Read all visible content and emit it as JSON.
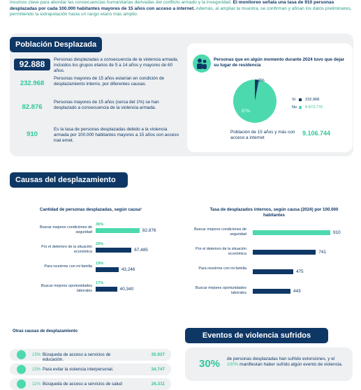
{
  "intro": {
    "text_1": "insumos clave para abordar las consecuencias humanitarias derivadas del conflicto armado y la inseguridad. ",
    "bold": "El monitoreo señala una tasa de 910 personas desplazadas por cada 100.000 habitantes mayores de 15 años con acceso a internet.",
    "text_2": " Además, al ampliar la muestra, se confirman y afinan los datos preliminares, permitiendo la extrapolación hacia un rango etario más amplio."
  },
  "poblacion": {
    "title": "Población Desplazada",
    "stats": [
      {
        "value": "92.888",
        "text": "Personas desplazadas a consecuencia de la violencia armada, incluidos los grupos etarios de 5 a 14 años y mayores de 60 años."
      },
      {
        "value": "232.968",
        "text": "Personas mayores de 15 años estarían en condición de desplazamiento interno, por diferentes causas."
      },
      {
        "value": "82.876",
        "text": "Personas mayores de 15 años (cerca del 1%) se han desplazado a consecuencia de la violencia armada."
      },
      {
        "value": "910",
        "text": "Es la tasa de personas desplazadas debido a la violencia armada por 100.000 habitantes mayores a 15 años con acceso inat ernet."
      }
    ],
    "panel": {
      "title": "Personas que en algún momento durante 2024 tuvo que dejar su lugar de residencia",
      "pie": {
        "values": [
          3,
          97
        ],
        "value_labels": [
          "3%",
          "97%"
        ],
        "colors": [
          "#0e3765",
          "#4cd9ae"
        ]
      },
      "legend": [
        {
          "label": "Sí",
          "value": "232.968"
        },
        {
          "label": "No",
          "value": "8.873.776"
        }
      ],
      "total_label": "Población de 15 años y más con acceso a internet",
      "total_value": "9.106.744"
    }
  },
  "causas": {
    "title": "Causas del desplazamiento",
    "colors": [
      "#4cd9ae",
      "#0e3765"
    ],
    "charts": [
      {
        "type": "bar",
        "title": "Cantidad de personas desplazadas, según causa¹",
        "categories": [
          "Buscar mejores condiciones de seguridad",
          "Por el deterioro de la situación económica",
          "Para reunirme con mi familia",
          "Buscar mejores oportunidades laborales"
        ],
        "shares": [
          "36%",
          "29%",
          "19%",
          "17%"
        ],
        "values": [
          82876,
          67485,
          43246,
          40340
        ],
        "value_labels": [
          "82,876",
          "67,485",
          "43,246",
          "40,340"
        ]
      },
      {
        "type": "bar",
        "title": "Tasa de desplazados internos, según causa (2024) por 100.000 habitantes",
        "categories": [
          "Buscar mejores condiciones de seguridad",
          "Por el deterioro de la situación económica",
          "Para reunirme con mi familia",
          "Buscar mejores oportunidades laborales"
        ],
        "values": [
          910,
          741,
          475,
          443
        ]
      }
    ]
  },
  "otras": {
    "title": "Otras causas de desplazamiento",
    "items": [
      {
        "share": "15%",
        "text": "Búsqueda de acceso a servicios de educación.",
        "value": "35.937"
      },
      {
        "share": "15%",
        "text": "Para evitar la violencia interpersonal.",
        "value": "34.747"
      },
      {
        "share": "11%",
        "text": "Búsqueda de acceso a servicios de salud",
        "value": "26.311"
      }
    ]
  },
  "eventos": {
    "title": "Eventos de violencia sufridos",
    "share": "30%",
    "text_1": "de personas desplazadas han sufrido extorsiones, y el ",
    "highlight": "100%",
    "text_2": " manifiestan haber sufrido algún evento de violencia."
  }
}
